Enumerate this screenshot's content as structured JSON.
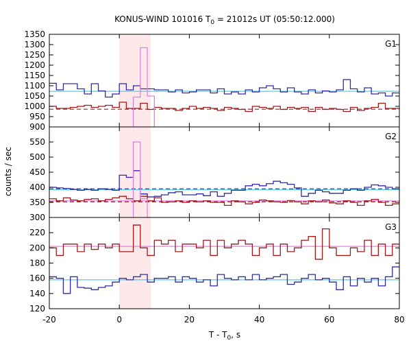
{
  "chart_data": {
    "type": "line",
    "title_prefix": "KONUS-WIND 101016 T",
    "title_sub": "0",
    "title_suffix": " = 21012s UT (05:50:12.000)",
    "xlabel_prefix": "T - T",
    "xlabel_sub": "0",
    "xlabel_suffix": ", s",
    "ylabel": "counts / sec",
    "xlim": [
      -20,
      80
    ],
    "x_ticks": [
      -20,
      0,
      20,
      40,
      60,
      80
    ],
    "highlight_interval": [
      0,
      9
    ],
    "highlight_color": "#fde8ea",
    "bin_edges": [
      -20,
      -18,
      -16,
      -14,
      -12,
      -10,
      -8,
      -6,
      -4,
      -2,
      0,
      2,
      4,
      6,
      8,
      10,
      12,
      14,
      16,
      18,
      20,
      22,
      24,
      26,
      28,
      30,
      32,
      34,
      36,
      38,
      40,
      42,
      44,
      46,
      48,
      50,
      52,
      54,
      56,
      58,
      60,
      62,
      64,
      66,
      68,
      70,
      72,
      74,
      76,
      78,
      80
    ],
    "panels": [
      {
        "label": "G1",
        "ylim": [
          900,
          1350
        ],
        "y_ticks": [
          900,
          950,
          1000,
          1050,
          1100,
          1150,
          1200,
          1250,
          1300,
          1350
        ],
        "series": [
          {
            "color": "#2b2ba8",
            "values": [
              1112,
              1080,
              1110,
              1110,
              1085,
              1060,
              1110,
              1075,
              1045,
              1060,
              1110,
              1080,
              1100,
              1085,
              1085,
              1080,
              1080,
              1070,
              1080,
              1065,
              1070,
              1080,
              1080,
              1065,
              1085,
              1060,
              1070,
              1060,
              1080,
              1070,
              1090,
              1100,
              1085,
              1070,
              1090,
              1070,
              1060,
              1080,
              1065,
              1075,
              1070,
              1080,
              1130,
              1085,
              1070,
              1090,
              1060,
              1065,
              1050,
              1065
            ]
          },
          {
            "color": "#a01818",
            "values": [
              1000,
              990,
              990,
              995,
              1000,
              1005,
              995,
              1000,
              1005,
              995,
              1020,
              990,
              990,
              1015,
              985,
              995,
              990,
              990,
              980,
              990,
              1000,
              990,
              995,
              990,
              980,
              995,
              990,
              985,
              975,
              1000,
              995,
              990,
              1000,
              985,
              995,
              990,
              995,
              975,
              995,
              985,
              990,
              985,
              975,
              995,
              980,
              990,
              995,
              1015,
              990,
              990
            ]
          },
          {
            "color": "#e080e0",
            "values": [
              null,
              null,
              null,
              null,
              null,
              null,
              null,
              null,
              null,
              null,
              null,
              null,
              1045,
              1285,
              1050,
              null,
              null,
              null,
              null,
              null,
              null,
              null,
              null,
              null,
              null,
              null,
              null,
              null,
              null,
              null,
              null,
              null,
              null,
              null,
              null,
              null,
              null,
              null,
              null,
              null,
              null,
              null,
              null,
              null,
              null,
              null,
              null,
              null,
              null,
              null
            ]
          }
        ],
        "background_levels": [
          {
            "color": "#5ac8e8",
            "dashed": false,
            "value": 1073
          },
          {
            "color": "#a01818",
            "dashed": true,
            "value": 986
          }
        ]
      },
      {
        "label": "G2",
        "ylim": [
          300,
          600
        ],
        "y_ticks": [
          300,
          350,
          400,
          450,
          500,
          550
        ],
        "series": [
          {
            "color": "#2b2ba8",
            "values": [
              400,
              398,
              396,
              393,
              390,
              393,
              390,
              395,
              393,
              390,
              440,
              433,
              455,
              378,
              368,
              370,
              375,
              382,
              385,
              375,
              375,
              378,
              372,
              385,
              370,
              380,
              390,
              390,
              405,
              410,
              405,
              412,
              420,
              415,
              410,
              398,
              370,
              380,
              390,
              385,
              380,
              380,
              390,
              395,
              390,
              400,
              408,
              405,
              400,
              395
            ]
          },
          {
            "color": "#a01818",
            "values": [
              362,
              355,
              365,
              358,
              355,
              360,
              362,
              355,
              360,
              365,
              370,
              362,
              355,
              370,
              355,
              365,
              350,
              352,
              355,
              350,
              355,
              352,
              355,
              350,
              350,
              340,
              355,
              352,
              345,
              350,
              358,
              355,
              352,
              350,
              356,
              352,
              345,
              355,
              352,
              358,
              348,
              345,
              355,
              350,
              340,
              355,
              360,
              350,
              340,
              345
            ]
          },
          {
            "color": "#e080e0",
            "values": [
              null,
              null,
              null,
              null,
              null,
              null,
              null,
              null,
              null,
              null,
              null,
              null,
              550,
              362,
              null,
              null,
              null,
              null,
              null,
              null,
              null,
              null,
              null,
              null,
              null,
              null,
              null,
              null,
              null,
              null,
              null,
              null,
              null,
              null,
              null,
              null,
              null,
              null,
              null,
              null,
              null,
              null,
              null,
              null,
              null,
              null,
              null,
              null,
              null,
              null
            ]
          }
        ],
        "background_levels": [
          {
            "color": "#5ac8e8",
            "dashed": false,
            "value": 392
          },
          {
            "color": "#2b2ba8",
            "dashed": true,
            "value": 395
          },
          {
            "color": "#e080e0",
            "dashed": false,
            "value": 355
          },
          {
            "color": "#a01818",
            "dashed": true,
            "value": 352
          }
        ]
      },
      {
        "label": "G3",
        "ylim": [
          120,
          240
        ],
        "y_ticks": [
          120,
          140,
          160,
          180,
          200,
          220
        ],
        "series": [
          {
            "color": "#a01818",
            "values": [
              200,
              190,
              205,
              205,
              195,
              205,
              198,
              205,
              200,
              205,
              195,
              195,
              230,
              200,
              190,
              210,
              205,
              210,
              195,
              205,
              205,
              200,
              210,
              190,
              210,
              200,
              205,
              210,
              205,
              190,
              200,
              205,
              190,
              205,
              195,
              200,
              210,
              215,
              185,
              225,
              200,
              190,
              190,
              200,
              195,
              210,
              190,
              205,
              190,
              205
            ]
          },
          {
            "color": "#2b2ba8",
            "values": [
              162,
              160,
              140,
              162,
              148,
              147,
              145,
              148,
              150,
              155,
              160,
              158,
              162,
              165,
              155,
              160,
              160,
              162,
              155,
              162,
              160,
              155,
              158,
              150,
              165,
              160,
              158,
              162,
              158,
              165,
              158,
              160,
              162,
              165,
              152,
              155,
              160,
              165,
              158,
              160,
              155,
              145,
              162,
              150,
              160,
              155,
              160,
              150,
              162,
              175
            ]
          }
        ],
        "background_levels": [
          {
            "color": "#e080e0",
            "dashed": false,
            "value": 202
          },
          {
            "color": "#5ac8e8",
            "dashed": false,
            "value": 158
          }
        ]
      }
    ]
  }
}
